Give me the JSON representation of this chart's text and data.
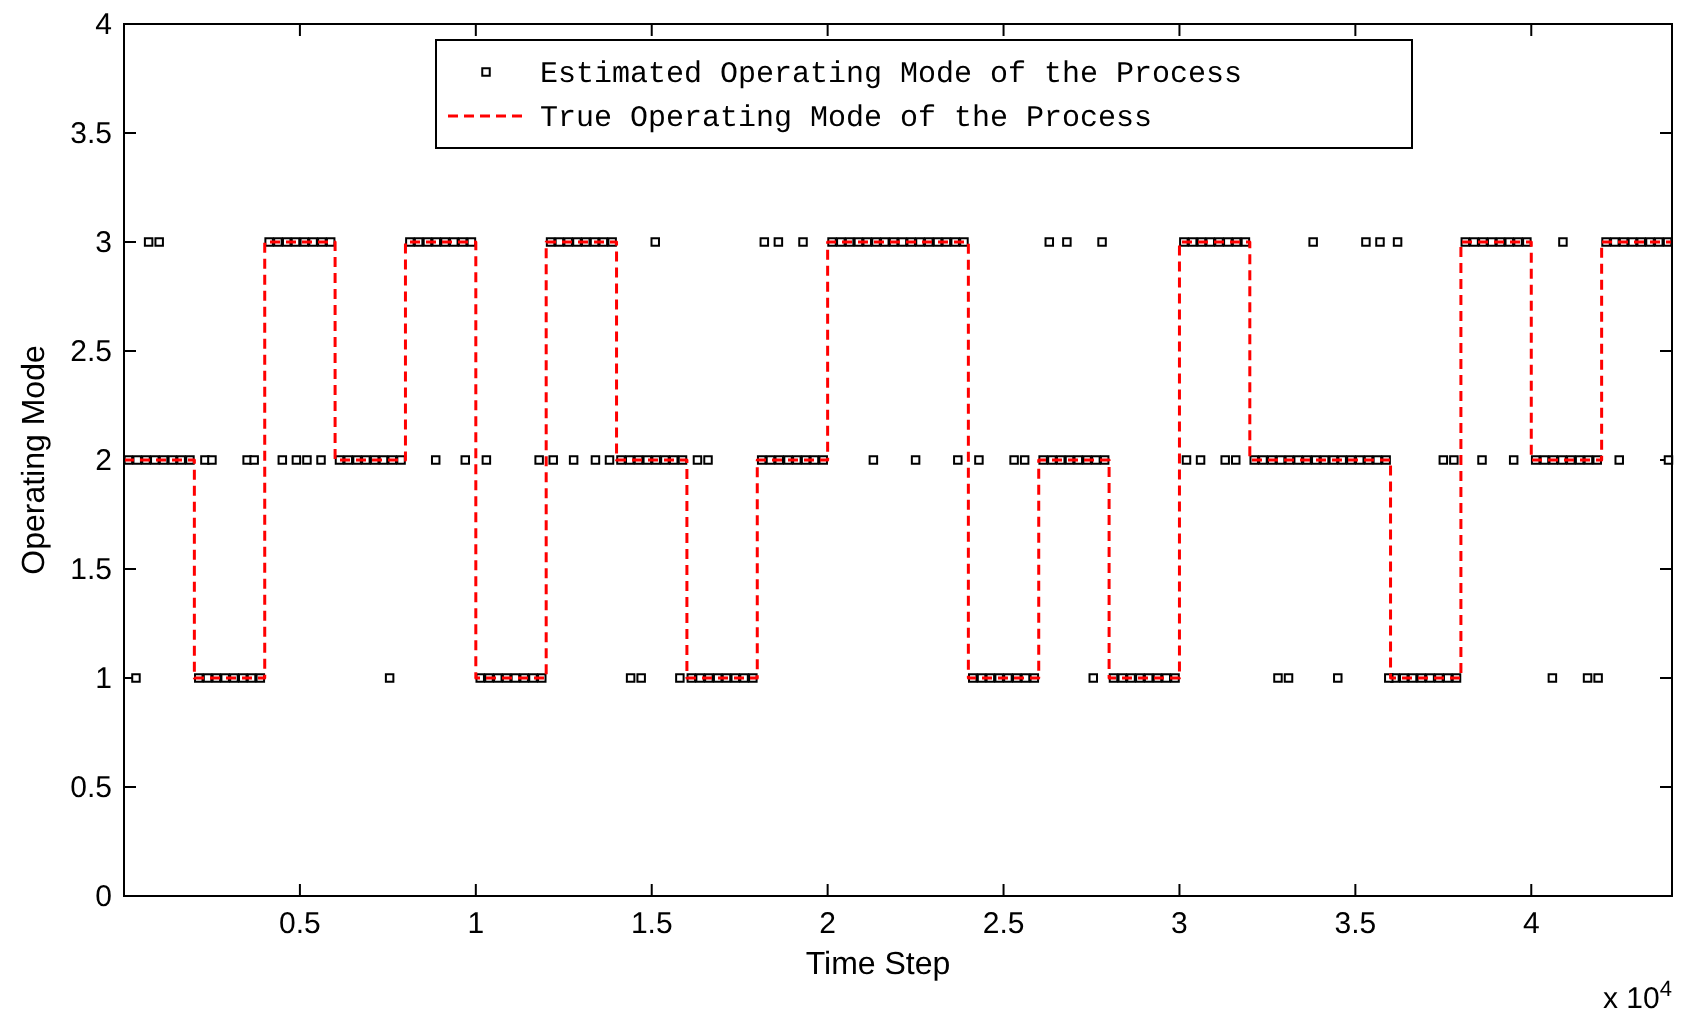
{
  "chart_data": {
    "type": "scatter",
    "xlabel": "Time Step",
    "ylabel": "Operating Mode",
    "annotations": [
      "x 10$^{4}$"
    ],
    "xlim": [
      0,
      4.4
    ],
    "ylim": [
      0,
      4
    ],
    "xticks": [
      0.5,
      1,
      1.5,
      2,
      2.5,
      3,
      3.5,
      4
    ],
    "yticks": [
      0,
      0.5,
      1,
      1.5,
      2,
      2.5,
      3,
      3.5,
      4
    ],
    "grid": false,
    "legend": "top",
    "series": [
      {
        "name": "Estimated Operating Mode of the Process",
        "color": "#000000",
        "marker": "square",
        "x": [
          0.0125,
          0.0375,
          0.0625,
          0.0875,
          0.1125,
          0.1375,
          0.1625,
          0.1875,
          0.2125,
          0.2375,
          0.2625,
          0.2875,
          0.3125,
          0.3375,
          0.3625,
          0.3875,
          0.4125,
          0.4375,
          0.4625,
          0.4875,
          0.5125,
          0.5375,
          0.5625,
          0.5875,
          0.6125,
          0.6375,
          0.6625,
          0.6875,
          0.7125,
          0.7375,
          0.7625,
          0.7875,
          0.8125,
          0.8375,
          0.8625,
          0.8875,
          0.9125,
          0.9375,
          0.9625,
          0.9875,
          1.0125,
          1.0375,
          1.0625,
          1.0875,
          1.1125,
          1.1375,
          1.1625,
          1.1875,
          1.2125,
          1.2375,
          1.2625,
          1.2875,
          1.3125,
          1.3375,
          1.3625,
          1.3875,
          1.4125,
          1.4375,
          1.4625,
          1.4875,
          1.5125,
          1.5375,
          1.5625,
          1.5875,
          1.6125,
          1.6375,
          1.6625,
          1.6875,
          1.7125,
          1.7375,
          1.7625,
          1.7875,
          1.8125,
          1.8375,
          1.8625,
          1.8875,
          1.9125,
          1.9375,
          1.9625,
          1.9875,
          2.0125,
          2.0375,
          2.0625,
          2.0875,
          2.1125,
          2.1375,
          2.1625,
          2.1875,
          2.2125,
          2.2375,
          2.2625,
          2.2875,
          2.3125,
          2.3375,
          2.3625,
          2.3875,
          2.4125,
          2.4375,
          2.4625,
          2.4875,
          2.5125,
          2.5375,
          2.5625,
          2.5875,
          2.6125,
          2.6375,
          2.6625,
          2.6875,
          2.7125,
          2.7375,
          2.7625,
          2.7875,
          2.8125,
          2.8375,
          2.8625,
          2.8875,
          2.9125,
          2.9375,
          2.9625,
          2.9875,
          3.0125,
          3.0375,
          3.0625,
          3.0875,
          3.1125,
          3.1375,
          3.1625,
          3.1875,
          3.2125,
          3.2375,
          3.2625,
          3.2875,
          3.3125,
          3.3375,
          3.3625,
          3.3875,
          3.4125,
          3.4375,
          3.4625,
          3.4875,
          3.5125,
          3.5375,
          3.5625,
          3.5875,
          3.6125,
          3.6375,
          3.6625,
          3.6875,
          3.7125,
          3.7375,
          3.7625,
          3.7875,
          3.8125,
          3.8375,
          3.8625,
          3.8875,
          3.9125,
          3.9375,
          3.9625,
          3.9875,
          4.0125,
          4.0375,
          4.0625,
          4.0875,
          4.1125,
          4.1375,
          4.1625,
          4.1875,
          4.2125,
          4.2375,
          4.2625,
          4.2875,
          4.3125,
          4.3375,
          4.3625,
          4.3875,
          0.07,
          0.1,
          0.034,
          0.23,
          0.25,
          0.35,
          0.37,
          0.45,
          0.49,
          0.52,
          0.56,
          0.755,
          0.886,
          0.97,
          1.03,
          1.18,
          1.22,
          1.278,
          1.34,
          1.38,
          1.44,
          1.47,
          1.51,
          1.58,
          1.63,
          1.66,
          1.82,
          1.86,
          1.93,
          2.13,
          2.25,
          2.37,
          2.43,
          2.53,
          2.56,
          2.63,
          2.68,
          2.755,
          2.78,
          3.02,
          3.06,
          3.13,
          3.16,
          3.28,
          3.31,
          3.38,
          3.45,
          3.53,
          3.57,
          3.595,
          3.62,
          3.75,
          3.78,
          3.86,
          3.95,
          4.06,
          4.09,
          4.16,
          4.19,
          4.25,
          4.39
        ],
        "values": [
          2,
          2,
          2,
          2,
          2,
          2,
          2,
          2,
          1,
          1,
          1,
          1,
          1,
          1,
          1,
          1,
          3,
          3,
          3,
          3,
          3,
          3,
          3,
          3,
          2,
          2,
          2,
          2,
          2,
          2,
          2,
          2,
          3,
          3,
          3,
          3,
          3,
          3,
          3,
          3,
          1,
          1,
          1,
          1,
          1,
          1,
          1,
          1,
          3,
          3,
          3,
          3,
          3,
          3,
          3,
          3,
          2,
          2,
          2,
          2,
          2,
          2,
          2,
          2,
          1,
          1,
          1,
          1,
          1,
          1,
          1,
          1,
          2,
          2,
          2,
          2,
          2,
          2,
          2,
          2,
          3,
          3,
          3,
          3,
          3,
          3,
          3,
          3,
          3,
          3,
          3,
          3,
          3,
          3,
          3,
          3,
          1,
          1,
          1,
          1,
          1,
          1,
          1,
          1,
          2,
          2,
          2,
          2,
          2,
          2,
          2,
          2,
          1,
          1,
          1,
          1,
          1,
          1,
          1,
          1,
          3,
          3,
          3,
          3,
          3,
          3,
          3,
          3,
          2,
          2,
          2,
          2,
          2,
          2,
          2,
          2,
          2,
          2,
          2,
          2,
          2,
          2,
          2,
          2,
          1,
          1,
          1,
          1,
          1,
          1,
          1,
          1,
          3,
          3,
          3,
          3,
          3,
          3,
          3,
          3,
          2,
          2,
          2,
          2,
          2,
          2,
          2,
          2,
          3,
          3,
          3,
          3,
          3,
          3,
          3,
          3,
          3,
          3,
          1,
          2,
          2,
          2,
          2,
          2,
          2,
          2,
          2,
          1,
          2,
          2,
          2,
          2,
          2,
          2,
          2,
          2,
          1,
          1,
          3,
          1,
          2,
          2,
          3,
          3,
          3,
          2,
          2,
          2,
          2,
          2,
          2,
          3,
          3,
          1,
          3,
          2,
          2,
          2,
          2,
          1,
          1,
          3,
          1,
          3,
          3,
          1,
          3,
          2,
          2,
          2,
          2,
          1,
          3,
          1,
          1,
          2,
          2
        ]
      },
      {
        "name": "True Operating Mode of the Process",
        "type": "step",
        "color": "#ff0000",
        "marker": "none",
        "line_style": "dashed",
        "x": [
          0,
          0.2,
          0.4,
          0.6,
          0.8,
          1,
          1.2,
          1.4,
          1.6,
          1.8,
          2,
          2.4,
          2.6,
          2.8,
          3,
          3.2,
          3.6,
          3.8,
          4,
          4.2,
          4.4
        ],
        "values": [
          2,
          1,
          3,
          2,
          3,
          1,
          3,
          2,
          1,
          2,
          3,
          1,
          2,
          1,
          3,
          2,
          1,
          3,
          2,
          3,
          3
        ]
      }
    ]
  }
}
